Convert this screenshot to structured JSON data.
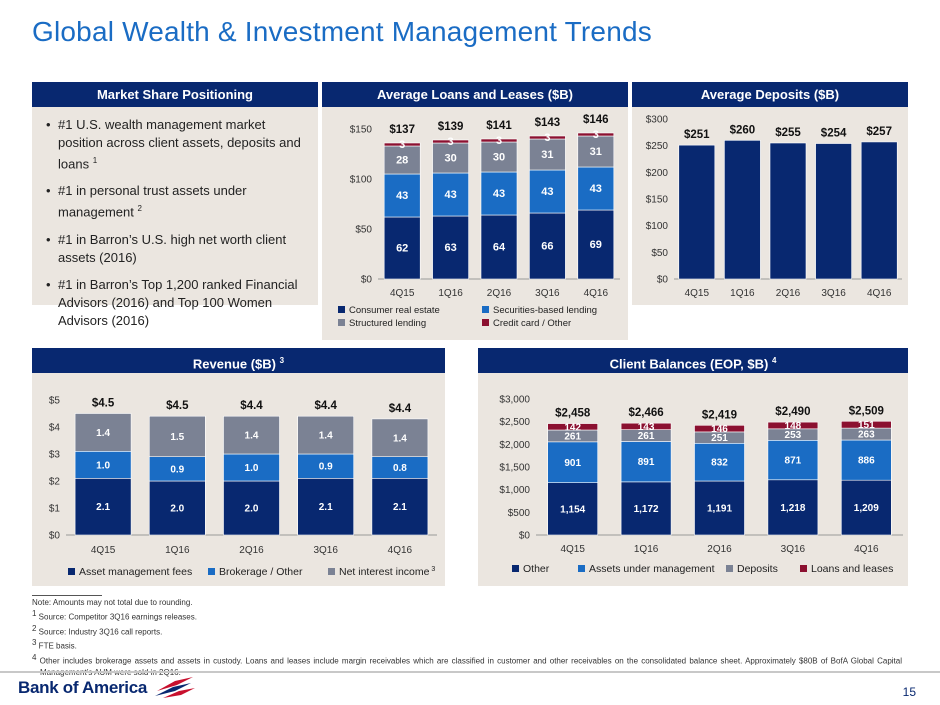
{
  "title": "Global Wealth & Investment Management Trends",
  "market_share": {
    "header": "Market Share Positioning",
    "bullets": [
      {
        "text": "#1 U.S. wealth management market position across client assets, deposits and loans ",
        "sup": "1"
      },
      {
        "text": "#1 in personal trust assets under management ",
        "sup": "2"
      },
      {
        "text": "#1 in Barron’s U.S. high net worth client assets (2016)",
        "sup": ""
      },
      {
        "text": "#1 in Barron’s Top 1,200 ranked Financial Advisors (2016) and Top 100 Women Advisors (2016)",
        "sup": ""
      }
    ]
  },
  "colors": {
    "navy": "#082870",
    "blue": "#1a6cc4",
    "gray": "#7b8294",
    "crimson": "#8b1030",
    "panel_bg": "#ebe6e0"
  },
  "chart_data": [
    {
      "id": "loans",
      "type": "bar",
      "stacked": true,
      "header": "Average Loans and Leases ($B)",
      "categories": [
        "4Q15",
        "1Q16",
        "2Q16",
        "3Q16",
        "4Q16"
      ],
      "series": [
        {
          "name": "Consumer real estate",
          "values": [
            62,
            63,
            64,
            66,
            69
          ],
          "color": "#082870"
        },
        {
          "name": "Securities-based lending",
          "values": [
            43,
            43,
            43,
            43,
            43
          ],
          "color": "#1a6cc4"
        },
        {
          "name": "Structured lending",
          "values": [
            28,
            30,
            30,
            31,
            31
          ],
          "color": "#7b8294"
        },
        {
          "name": "Credit card / Other",
          "values": [
            3,
            3,
            3,
            3,
            3
          ],
          "color": "#8b1030"
        }
      ],
      "totals": [
        "$137",
        "$139",
        "$141",
        "$143",
        "$146"
      ],
      "yticks": [
        "$0",
        "$50",
        "$100",
        "$150"
      ],
      "ylim": [
        0,
        150
      ],
      "grid": false,
      "legend": "bottom"
    },
    {
      "id": "deposits",
      "type": "bar",
      "stacked": false,
      "header": "Average Deposits ($B)",
      "categories": [
        "4Q15",
        "1Q16",
        "2Q16",
        "3Q16",
        "4Q16"
      ],
      "series": [
        {
          "name": "",
          "values": [
            251,
            260,
            255,
            254,
            257
          ],
          "color": "#082870"
        }
      ],
      "totals": [
        "$251",
        "$260",
        "$255",
        "$254",
        "$257"
      ],
      "yticks": [
        "$0",
        "$50",
        "$100",
        "$150",
        "$200",
        "$250",
        "$300"
      ],
      "ylim": [
        0,
        300
      ],
      "grid": false,
      "legend": "none"
    },
    {
      "id": "revenue",
      "type": "bar",
      "stacked": true,
      "header": "Revenue ($B)",
      "header_sup": "3",
      "categories": [
        "4Q15",
        "1Q16",
        "2Q16",
        "3Q16",
        "4Q16"
      ],
      "series": [
        {
          "name": "Asset management fees",
          "values": [
            2.1,
            2.0,
            2.0,
            2.1,
            2.1
          ],
          "labels": [
            "2.1",
            "2.0",
            "2.0",
            "2.1",
            "2.1"
          ],
          "color": "#082870"
        },
        {
          "name": "Brokerage / Other",
          "values": [
            1.0,
            0.9,
            1.0,
            0.9,
            0.8
          ],
          "labels": [
            "1.0",
            "0.9",
            "1.0",
            "0.9",
            "0.8"
          ],
          "color": "#1a6cc4"
        },
        {
          "name": "Net interest income",
          "name_sup": "3",
          "values": [
            1.4,
            1.5,
            1.4,
            1.4,
            1.4
          ],
          "labels": [
            "1.4",
            "1.5",
            "1.4",
            "1.4",
            "1.4"
          ],
          "color": "#7b8294"
        }
      ],
      "totals": [
        "$4.5",
        "$4.5",
        "$4.4",
        "$4.4",
        "$4.4"
      ],
      "yticks": [
        "$0",
        "$1",
        "$2",
        "$3",
        "$4",
        "$5"
      ],
      "ylim": [
        0,
        5
      ],
      "grid": false,
      "legend": "bottom"
    },
    {
      "id": "balances",
      "type": "bar",
      "stacked": true,
      "header": "Client Balances (EOP, $B)",
      "header_sup": "4",
      "categories": [
        "4Q15",
        "1Q16",
        "2Q16",
        "3Q16",
        "4Q16"
      ],
      "series": [
        {
          "name": "Other",
          "values": [
            1154,
            1172,
            1191,
            1218,
            1209
          ],
          "labels": [
            "1,154",
            "1,172",
            "1,191",
            "1,218",
            "1,209"
          ],
          "color": "#082870"
        },
        {
          "name": "Assets under management",
          "values": [
            901,
            891,
            832,
            871,
            886
          ],
          "labels": [
            "901",
            "891",
            "832",
            "871",
            "886"
          ],
          "color": "#1a6cc4"
        },
        {
          "name": "Deposits",
          "values": [
            261,
            261,
            251,
            253,
            263
          ],
          "labels": [
            "261",
            "261",
            "251",
            "253",
            "263"
          ],
          "color": "#7b8294"
        },
        {
          "name": "Loans and leases",
          "values": [
            142,
            143,
            146,
            148,
            151
          ],
          "labels": [
            "142",
            "143",
            "146",
            "148",
            "151"
          ],
          "color": "#8b1030"
        }
      ],
      "totals": [
        "$2,458",
        "$2,466",
        "$2,419",
        "$2,490",
        "$2,509"
      ],
      "yticks": [
        "$0",
        "$500",
        "$1,000",
        "$1,500",
        "$2,000",
        "$2,500",
        "$3,000"
      ],
      "ylim": [
        0,
        3000
      ],
      "grid": false,
      "legend": "bottom"
    }
  ],
  "notes": [
    "Note: Amounts may not total due to rounding.",
    {
      "sup": "1",
      "text": " Source: Competitor 3Q16 earnings releases."
    },
    {
      "sup": "2",
      "text": " Source: Industry 3Q16 call reports."
    },
    {
      "sup": "3",
      "text": " FTE basis."
    },
    {
      "sup": "4",
      "text": " Other includes brokerage assets and assets in custody. Loans and leases include margin receivables which are classified in customer and other receivables on the consolidated balance sheet. Approximately $80B of BofA Global Capital Management’s AUM were sold in 2Q16."
    }
  ],
  "footer": {
    "logo_text": "Bank of America",
    "page_number": "15"
  }
}
